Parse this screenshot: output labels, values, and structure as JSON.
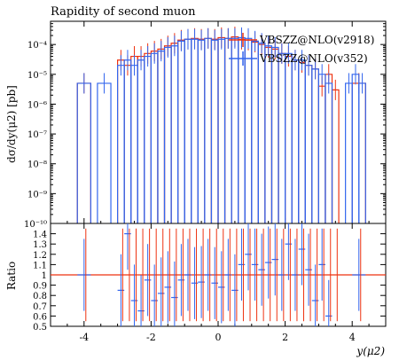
{
  "chart_data": {
    "type": "line",
    "title": "Rapidity of second muon",
    "xlabel": "y(μ2)",
    "ylabel": "dσ/dy(μ2) [pb]",
    "ratio_ylabel": "Ratio",
    "log_y": true,
    "xlim": [
      -5,
      5
    ],
    "ylim_main": [
      1e-10,
      0.0006
    ],
    "ylim_ratio": [
      0.5,
      1.5
    ],
    "x_ticks": [
      "-4",
      "-2",
      "0",
      "2",
      "4"
    ],
    "x_tick_values": [
      -4,
      -2,
      0,
      2,
      4
    ],
    "y_ticks_main": [
      "10⁻¹⁰",
      "10⁻⁹",
      "10⁻⁸",
      "10⁻⁷",
      "10⁻⁶",
      "10⁻⁵",
      "10⁻⁴"
    ],
    "y_tick_exponents": [
      -10,
      -9,
      -8,
      -7,
      -6,
      -5,
      -4
    ],
    "y_ticks_ratio": [
      "0.5",
      "0.6",
      "0.7",
      "0.8",
      "0.9",
      "1",
      "1.1",
      "1.2",
      "1.3",
      "1.4"
    ],
    "y_tick_ratio_values": [
      0.5,
      0.6,
      0.7,
      0.8,
      0.9,
      1.0,
      1.1,
      1.2,
      1.3,
      1.4
    ],
    "legend_position": "top-right",
    "series": [
      {
        "name": "VBSZZ@NLO(v2918)",
        "color": "#ee3311",
        "bins": [
          {
            "x0": -4.2,
            "x1": -3.8,
            "y": 5e-06
          },
          {
            "x0": -3.0,
            "x1": -2.8,
            "y": 3e-05
          },
          {
            "x0": -2.8,
            "x1": -2.6,
            "y": 2e-05
          },
          {
            "x0": -2.6,
            "x1": -2.4,
            "y": 4e-05
          },
          {
            "x0": -2.4,
            "x1": -2.2,
            "y": 4e-05
          },
          {
            "x0": -2.2,
            "x1": -2.0,
            "y": 5e-05
          },
          {
            "x0": -2.0,
            "x1": -1.8,
            "y": 6e-05
          },
          {
            "x0": -1.8,
            "x1": -1.6,
            "y": 7e-05
          },
          {
            "x0": -1.6,
            "x1": -1.4,
            "y": 9e-05
          },
          {
            "x0": -1.4,
            "x1": -1.2,
            "y": 0.00011
          },
          {
            "x0": -1.2,
            "x1": -1.0,
            "y": 0.00014
          },
          {
            "x0": -1.0,
            "x1": -0.8,
            "y": 0.00015
          },
          {
            "x0": -0.8,
            "x1": -0.6,
            "y": 0.00016
          },
          {
            "x0": -0.6,
            "x1": -0.4,
            "y": 0.00015
          },
          {
            "x0": -0.4,
            "x1": -0.2,
            "y": 0.00016
          },
          {
            "x0": -0.2,
            "x1": 0.0,
            "y": 0.00015
          },
          {
            "x0": 0.0,
            "x1": 0.2,
            "y": 0.00017
          },
          {
            "x0": 0.2,
            "x1": 0.4,
            "y": 0.00016
          },
          {
            "x0": 0.4,
            "x1": 0.6,
            "y": 0.00018
          },
          {
            "x0": 0.6,
            "x1": 0.8,
            "y": 0.00015
          },
          {
            "x0": 0.8,
            "x1": 1.0,
            "y": 0.00014
          },
          {
            "x0": 1.0,
            "x1": 1.2,
            "y": 0.00012
          },
          {
            "x0": 1.2,
            "x1": 1.4,
            "y": 0.0001
          },
          {
            "x0": 1.4,
            "x1": 1.6,
            "y": 8e-05
          },
          {
            "x0": 1.6,
            "x1": 1.8,
            "y": 7e-05
          },
          {
            "x0": 1.8,
            "x1": 2.0,
            "y": 5e-05
          },
          {
            "x0": 2.0,
            "x1": 2.2,
            "y": 4e-05
          },
          {
            "x0": 2.2,
            "x1": 2.4,
            "y": 3e-05
          },
          {
            "x0": 2.4,
            "x1": 2.6,
            "y": 2.5e-05
          },
          {
            "x0": 2.6,
            "x1": 2.8,
            "y": 2e-05
          },
          {
            "x0": 2.8,
            "x1": 3.0,
            "y": 1.5e-05
          },
          {
            "x0": 3.0,
            "x1": 3.2,
            "y": 4e-06
          },
          {
            "x0": 3.2,
            "x1": 3.4,
            "y": 1e-05
          },
          {
            "x0": 3.4,
            "x1": 3.6,
            "y": 3e-06
          },
          {
            "x0": 4.0,
            "x1": 4.4,
            "y": 5e-06
          }
        ],
        "ratio": [
          {
            "x0": -5.0,
            "x1": 5.0,
            "y": 1.0
          }
        ]
      },
      {
        "name": "VBSZZ@NLO(v352)",
        "color": "#3366ee",
        "bins": [
          {
            "x0": -4.2,
            "x1": -3.8,
            "y": 5e-06
          },
          {
            "x0": -3.6,
            "x1": -3.2,
            "y": 5e-06
          },
          {
            "x0": -3.0,
            "x1": -2.8,
            "y": 2e-05
          },
          {
            "x0": -2.8,
            "x1": -2.6,
            "y": 3e-05
          },
          {
            "x0": -2.6,
            "x1": -2.4,
            "y": 2e-05
          },
          {
            "x0": -2.4,
            "x1": -2.2,
            "y": 3e-05
          },
          {
            "x0": -2.2,
            "x1": -2.0,
            "y": 4e-05
          },
          {
            "x0": -2.0,
            "x1": -1.8,
            "y": 5e-05
          },
          {
            "x0": -1.8,
            "x1": -1.6,
            "y": 6e-05
          },
          {
            "x0": -1.6,
            "x1": -1.4,
            "y": 8e-05
          },
          {
            "x0": -1.4,
            "x1": -1.2,
            "y": 9e-05
          },
          {
            "x0": -1.2,
            "x1": -1.0,
            "y": 0.00013
          },
          {
            "x0": -1.0,
            "x1": -0.8,
            "y": 0.00015
          },
          {
            "x0": -0.8,
            "x1": -0.6,
            "y": 0.00015
          },
          {
            "x0": -0.6,
            "x1": -0.4,
            "y": 0.00014
          },
          {
            "x0": -0.4,
            "x1": -0.2,
            "y": 0.00016
          },
          {
            "x0": -0.2,
            "x1": 0.0,
            "y": 0.00014
          },
          {
            "x0": 0.0,
            "x1": 0.2,
            "y": 0.00015
          },
          {
            "x0": 0.2,
            "x1": 0.4,
            "y": 0.00016
          },
          {
            "x0": 0.4,
            "x1": 0.6,
            "y": 0.00016
          },
          {
            "x0": 0.6,
            "x1": 0.8,
            "y": 0.00017
          },
          {
            "x0": 0.8,
            "x1": 1.0,
            "y": 0.00016
          },
          {
            "x0": 1.0,
            "x1": 1.2,
            "y": 0.00013
          },
          {
            "x0": 1.2,
            "x1": 1.4,
            "y": 0.00011
          },
          {
            "x0": 1.4,
            "x1": 1.6,
            "y": 9e-05
          },
          {
            "x0": 1.6,
            "x1": 1.8,
            "y": 8e-05
          },
          {
            "x0": 1.8,
            "x1": 2.0,
            "y": 5e-05
          },
          {
            "x0": 2.0,
            "x1": 2.2,
            "y": 5e-05
          },
          {
            "x0": 2.2,
            "x1": 2.4,
            "y": 3e-05
          },
          {
            "x0": 2.4,
            "x1": 2.6,
            "y": 3e-05
          },
          {
            "x0": 2.6,
            "x1": 2.8,
            "y": 2e-05
          },
          {
            "x0": 2.8,
            "x1": 3.0,
            "y": 1.5e-05
          },
          {
            "x0": 3.0,
            "x1": 3.2,
            "y": 1e-05
          },
          {
            "x0": 3.2,
            "x1": 3.4,
            "y": 5e-06
          },
          {
            "x0": 3.8,
            "x1": 4.0,
            "y": 5e-06
          },
          {
            "x0": 4.0,
            "x1": 4.2,
            "y": 1e-05
          },
          {
            "x0": 4.2,
            "x1": 4.4,
            "y": 5e-06
          }
        ],
        "ratio": [
          {
            "x0": -4.2,
            "x1": -3.8,
            "y": 1.0
          },
          {
            "x0": -3.0,
            "x1": -2.8,
            "y": 0.85
          },
          {
            "x0": -2.8,
            "x1": -2.6,
            "y": 1.4
          },
          {
            "x0": -2.6,
            "x1": -2.4,
            "y": 0.75
          },
          {
            "x0": -2.4,
            "x1": -2.2,
            "y": 0.65
          },
          {
            "x0": -2.2,
            "x1": -2.0,
            "y": 0.95
          },
          {
            "x0": -2.0,
            "x1": -1.8,
            "y": 0.75
          },
          {
            "x0": -1.8,
            "x1": -1.6,
            "y": 0.82
          },
          {
            "x0": -1.6,
            "x1": -1.4,
            "y": 0.88
          },
          {
            "x0": -1.4,
            "x1": -1.2,
            "y": 0.78
          },
          {
            "x0": -1.2,
            "x1": -1.0,
            "y": 0.95
          },
          {
            "x0": -1.0,
            "x1": -0.8,
            "y": 1.0
          },
          {
            "x0": -0.8,
            "x1": -0.6,
            "y": 0.92
          },
          {
            "x0": -0.6,
            "x1": -0.4,
            "y": 0.93
          },
          {
            "x0": -0.4,
            "x1": -0.2,
            "y": 1.0
          },
          {
            "x0": -0.2,
            "x1": 0.0,
            "y": 0.92
          },
          {
            "x0": 0.0,
            "x1": 0.2,
            "y": 0.88
          },
          {
            "x0": 0.2,
            "x1": 0.4,
            "y": 1.0
          },
          {
            "x0": 0.4,
            "x1": 0.6,
            "y": 0.85
          },
          {
            "x0": 0.6,
            "x1": 0.8,
            "y": 1.1
          },
          {
            "x0": 0.8,
            "x1": 1.0,
            "y": 1.2
          },
          {
            "x0": 1.0,
            "x1": 1.2,
            "y": 1.1
          },
          {
            "x0": 1.2,
            "x1": 1.4,
            "y": 1.05
          },
          {
            "x0": 1.4,
            "x1": 1.6,
            "y": 1.12
          },
          {
            "x0": 1.6,
            "x1": 1.8,
            "y": 1.15
          },
          {
            "x0": 1.8,
            "x1": 2.0,
            "y": 1.0
          },
          {
            "x0": 2.0,
            "x1": 2.2,
            "y": 1.3
          },
          {
            "x0": 2.2,
            "x1": 2.4,
            "y": 1.0
          },
          {
            "x0": 2.4,
            "x1": 2.6,
            "y": 1.25
          },
          {
            "x0": 2.6,
            "x1": 2.8,
            "y": 1.05
          },
          {
            "x0": 2.8,
            "x1": 3.0,
            "y": 0.75
          },
          {
            "x0": 3.0,
            "x1": 3.2,
            "y": 1.1
          },
          {
            "x0": 3.2,
            "x1": 3.4,
            "y": 0.6
          },
          {
            "x0": 4.0,
            "x1": 4.4,
            "y": 1.0
          }
        ]
      }
    ]
  }
}
